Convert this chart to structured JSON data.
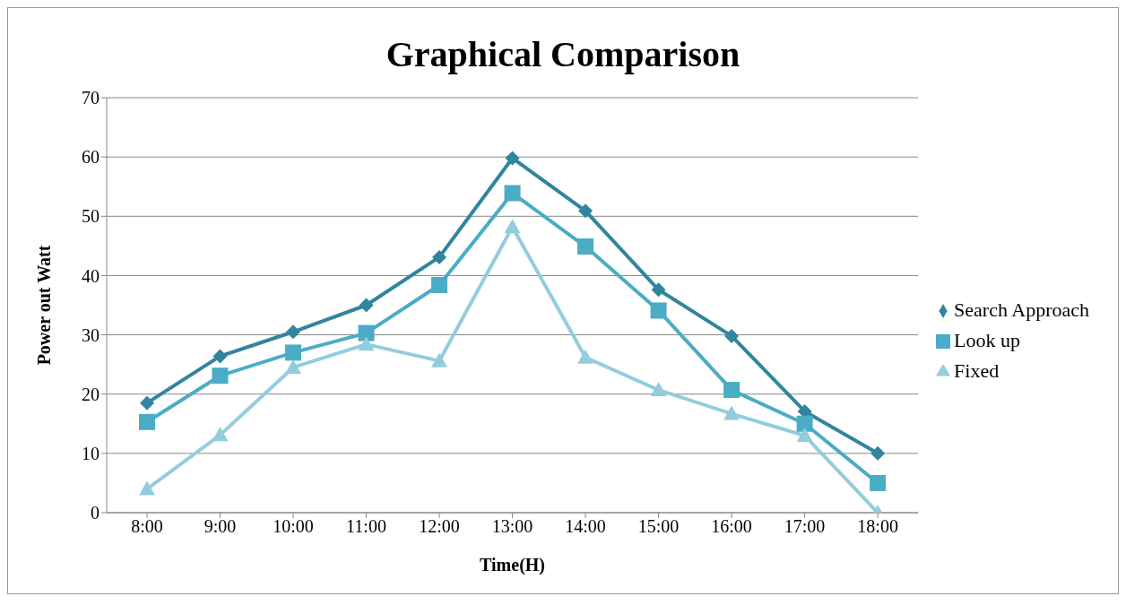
{
  "chart_data": {
    "type": "line",
    "title": "Graphical Comparison",
    "xlabel": "Time(H)",
    "ylabel": "Power out Watt",
    "categories": [
      "8:00",
      "9:00",
      "10:00",
      "11:00",
      "12:00",
      "13:00",
      "14:00",
      "15:00",
      "16:00",
      "17:00",
      "18:00"
    ],
    "series": [
      {
        "name": "Search Approach",
        "color": "#31859c",
        "marker": "diamond",
        "values": [
          18.5,
          26.4,
          30.5,
          35,
          43.1,
          59.8,
          50.9,
          37.6,
          29.8,
          17.1,
          10
        ]
      },
      {
        "name": "Look up",
        "color": "#4bacc6",
        "marker": "square",
        "values": [
          15.3,
          23.1,
          27,
          30.3,
          38.4,
          53.9,
          44.9,
          34.1,
          20.7,
          15,
          5
        ]
      },
      {
        "name": "Fixed",
        "color": "#93cddd",
        "marker": "triangle",
        "values": [
          4,
          13.1,
          24.5,
          28.4,
          25.6,
          48.2,
          26.2,
          20.7,
          16.7,
          13,
          0
        ]
      }
    ],
    "ylim": [
      0,
      70
    ],
    "yticks": [
      0,
      10,
      20,
      30,
      40,
      50,
      60,
      70
    ],
    "grid": "y",
    "legend": "right",
    "line_style": "solid"
  }
}
